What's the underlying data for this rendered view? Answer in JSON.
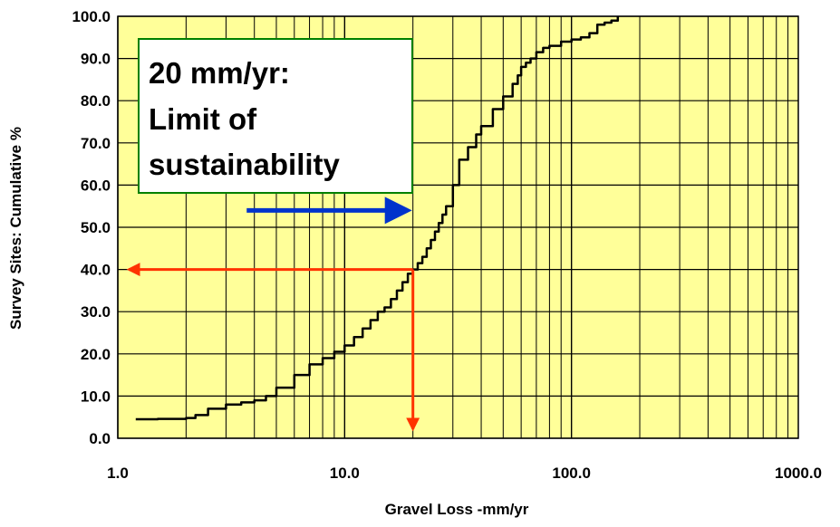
{
  "chart_data": {
    "type": "line",
    "xscale": "log",
    "xlim": [
      1,
      1000
    ],
    "ylim": [
      0,
      100
    ],
    "xlabel": "Gravel Loss -mm/yr",
    "ylabel": "Survey Sites: Cumulative %",
    "x_ticks": [
      "1.0",
      "10.0",
      "100.0",
      "1000.0"
    ],
    "y_ticks": [
      "0.0",
      "10.0",
      "20.0",
      "30.0",
      "40.0",
      "50.0",
      "60.0",
      "70.0",
      "80.0",
      "90.0",
      "100.0"
    ],
    "grid": true,
    "plot_background": "#ffff99",
    "series": [
      {
        "color": "#000000",
        "x": [
          1.2,
          1.5,
          2.0,
          2.2,
          2.5,
          3.0,
          3.5,
          4.0,
          4.5,
          5.0,
          6.0,
          7.0,
          8.0,
          9.0,
          10.0,
          11.0,
          12.0,
          13.0,
          14.0,
          15.0,
          16.0,
          17.0,
          18.0,
          19.0,
          20.0,
          21.0,
          22.0,
          23.0,
          24.0,
          25.0,
          26.0,
          27.0,
          28.0,
          30.0,
          32.0,
          35.0,
          38.0,
          40.0,
          45.0,
          50.0,
          55.0,
          58.0,
          60.0,
          63.0,
          66.0,
          70.0,
          75.0,
          80.0,
          90.0,
          100.0,
          110.0,
          120.0,
          130.0,
          140.0,
          150.0,
          160.0
        ],
        "y": [
          4.5,
          4.6,
          4.8,
          5.5,
          7.0,
          8.0,
          8.5,
          9.0,
          10.0,
          12.0,
          15.0,
          17.5,
          19.0,
          20.5,
          22.0,
          24.0,
          26.0,
          28.0,
          30.0,
          31.0,
          33.0,
          35.0,
          37.0,
          39.0,
          40.0,
          41.5,
          43.0,
          45.0,
          47.0,
          49.0,
          51.0,
          53.0,
          55.0,
          60.0,
          66.0,
          69.0,
          72.0,
          74.0,
          78.0,
          81.0,
          84.0,
          86.0,
          88.0,
          89.0,
          90.0,
          91.5,
          92.5,
          93.0,
          94.0,
          94.5,
          95.0,
          96.0,
          98.0,
          98.5,
          99.0,
          100.0
        ]
      }
    ],
    "annotations": {
      "callout_lines": [
        "20 mm/yr:",
        "Limit of",
        "sustainability"
      ],
      "callout_border_color": "#008000",
      "pointer_arrow": {
        "color": "#0033cc",
        "from_x": 3.7,
        "to_x": 20,
        "y": 54
      },
      "guide_lines": {
        "color": "#ff3300",
        "x": 20,
        "y": 40
      }
    }
  }
}
